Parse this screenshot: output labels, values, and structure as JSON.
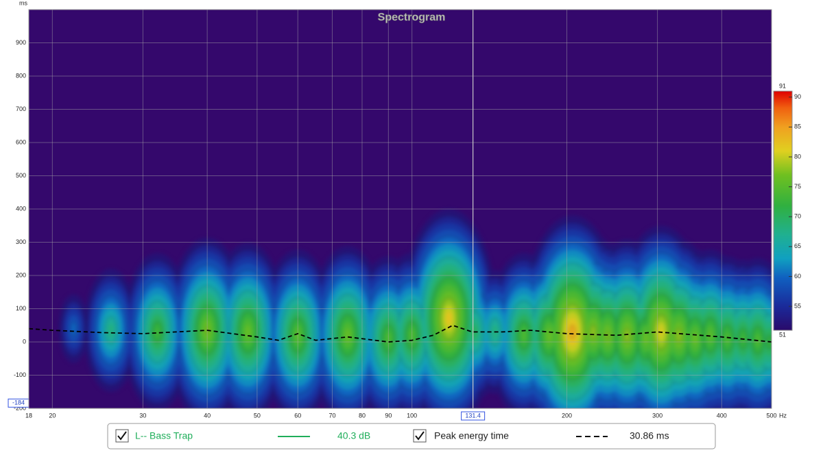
{
  "chart_data": {
    "type": "spectrogram",
    "title": "Spectrogram",
    "y_unit": "ms",
    "x_unit": "Hz",
    "log_x": true,
    "grid": true,
    "background": "#34086c",
    "xlim": [
      18,
      500
    ],
    "ylim": [
      -200,
      1000
    ],
    "xticks": [
      18,
      20,
      30,
      40,
      50,
      60,
      70,
      80,
      90,
      100,
      200,
      300,
      400,
      500
    ],
    "yticks": [
      -200,
      -100,
      0,
      100,
      200,
      300,
      400,
      500,
      600,
      700,
      800,
      900
    ],
    "cursor": {
      "x": 131.4,
      "y": -184
    },
    "colorbar": {
      "zlim": [
        51,
        91
      ],
      "ticks": [
        55,
        60,
        65,
        70,
        75,
        80,
        85,
        90
      ]
    },
    "series": [
      {
        "name": "L-- Bass Trap",
        "color": "#1fae5a",
        "readout": "40.3 dB",
        "hotspots": {
          "x": [
            22,
            26,
            32,
            40,
            48,
            60,
            75,
            90,
            100,
            118,
            132,
            145,
            165,
            185,
            205,
            225,
            240,
            262,
            285,
            305,
            330,
            355,
            380,
            410,
            440,
            470,
            495
          ],
          "y": [
            40,
            35,
            30,
            35,
            30,
            20,
            20,
            10,
            20,
            70,
            30,
            30,
            20,
            20,
            30,
            30,
            20,
            20,
            10,
            30,
            20,
            10,
            20,
            10,
            10,
            5,
            0
          ],
          "z": [
            62,
            70,
            75,
            79,
            78,
            77,
            78,
            76,
            76,
            84,
            72,
            70,
            76,
            78,
            86,
            80,
            79,
            80,
            78,
            83,
            80,
            78,
            77,
            76,
            75,
            76,
            74
          ]
        }
      },
      {
        "name": "Peak energy time",
        "color": "#000000",
        "readout": "30.86 ms",
        "x": [
          18,
          20,
          25,
          30,
          40,
          50,
          55,
          60,
          65,
          75,
          90,
          100,
          110,
          120,
          131,
          150,
          170,
          200,
          250,
          300,
          400,
          500
        ],
        "values": [
          40,
          35,
          28,
          25,
          35,
          15,
          5,
          25,
          5,
          15,
          0,
          5,
          20,
          50,
          30,
          30,
          35,
          25,
          20,
          30,
          15,
          0
        ]
      }
    ]
  }
}
